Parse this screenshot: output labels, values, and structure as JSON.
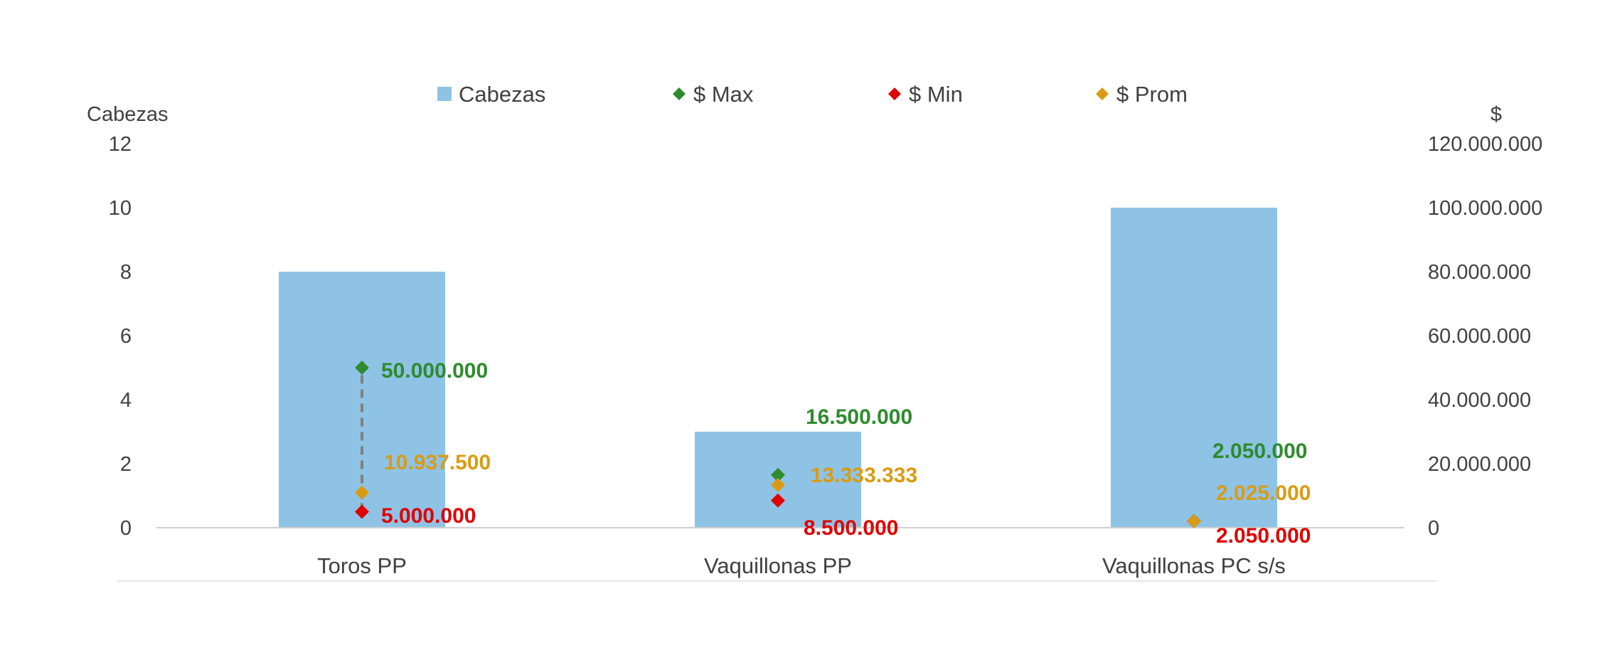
{
  "chart_data": {
    "type": "bar",
    "categories": [
      "Toros PP",
      "Vaquillonas PP",
      "Vaquillonas PC s/s"
    ],
    "bar_series": {
      "name": "Cabezas",
      "values": [
        8,
        3,
        10
      ],
      "color": "#8fc3e6"
    },
    "point_series": [
      {
        "name": "$ Max",
        "values": [
          50000000,
          16500000,
          2050000
        ],
        "labels": [
          "50.000.000",
          "16.500.000",
          "2.050.000"
        ],
        "color": "#2e8b2e"
      },
      {
        "name": "$ Min",
        "values": [
          5000000,
          8500000,
          2050000
        ],
        "labels": [
          "5.000.000",
          "8.500.000",
          "2.050.000"
        ],
        "color": "#e00000"
      },
      {
        "name": "$ Prom",
        "values": [
          10937500,
          13333333,
          2025000
        ],
        "labels": [
          "10.937.500",
          "13.333.333",
          "2.025.000"
        ],
        "color": "#d99b12"
      }
    ],
    "left_axis": {
      "title": "Cabezas",
      "range": [
        0,
        12
      ],
      "ticks": [
        "0",
        "2",
        "4",
        "6",
        "8",
        "10",
        "12"
      ]
    },
    "right_axis": {
      "title": "$",
      "range": [
        0,
        120000000
      ],
      "ticks": [
        "0",
        "20.000.000",
        "40.000.000",
        "60.000.000",
        "80.000.000",
        "100.000.000",
        "120.000.000"
      ]
    },
    "legend": {
      "placement": "top",
      "entries": [
        "Cabezas",
        "$ Max",
        "$ Min",
        "$ Prom"
      ]
    },
    "grid": false,
    "highlight_range_line": {
      "category": "Toros PP",
      "from": "$ Min",
      "to": "$ Max",
      "color": "#808080",
      "style": "dashed"
    }
  }
}
